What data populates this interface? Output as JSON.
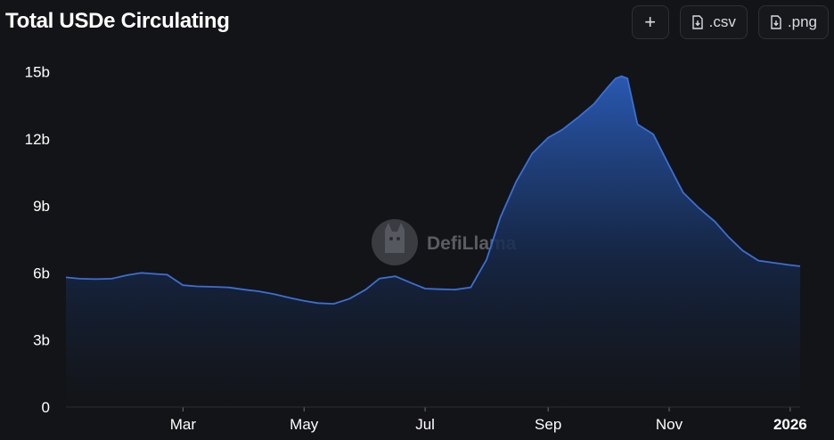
{
  "header": {
    "title": "Total USDe Circulating",
    "buttons": {
      "add_label": "+",
      "csv_label": ".csv",
      "png_label": ".png"
    },
    "icons": {
      "add": "plus-icon",
      "csv": "download-file-icon",
      "png": "download-file-icon"
    }
  },
  "watermark": {
    "text": "DefiLlama",
    "icon": "llama-logo-icon"
  },
  "chart_data": {
    "type": "area",
    "title": "Total USDe Circulating",
    "xlabel": "",
    "ylabel": "",
    "units": "b",
    "color": "#3b6fd6",
    "grid": false,
    "legend": "none",
    "xlim": [
      "2025-01-01",
      "2026-01-06"
    ],
    "ylim": [
      0,
      15.5
    ],
    "y_ticks": [
      0,
      3,
      6,
      9,
      12,
      15
    ],
    "y_tick_labels": [
      "0",
      "3b",
      "6b",
      "9b",
      "12b",
      "15b"
    ],
    "x_ticks": [
      "2025-03-01",
      "2025-05-01",
      "2025-07-01",
      "2025-09-01",
      "2025-11-01",
      "2026-01-01"
    ],
    "x_tick_labels": [
      "Mar",
      "May",
      "Jul",
      "Sep",
      "Nov",
      "2026"
    ],
    "series": [
      {
        "x": [
          "2025-01-01",
          "2025-01-08",
          "2025-01-16",
          "2025-01-24",
          "2025-02-01",
          "2025-02-08",
          "2025-02-14",
          "2025-02-21",
          "2025-03-01",
          "2025-03-08",
          "2025-03-16",
          "2025-03-24",
          "2025-04-01",
          "2025-04-08",
          "2025-04-16",
          "2025-04-24",
          "2025-05-01",
          "2025-05-08",
          "2025-05-16",
          "2025-05-24",
          "2025-06-01",
          "2025-06-08",
          "2025-06-16",
          "2025-06-24",
          "2025-07-01",
          "2025-07-08",
          "2025-07-16",
          "2025-07-24",
          "2025-08-01",
          "2025-08-08",
          "2025-08-16",
          "2025-08-24",
          "2025-09-01",
          "2025-09-08",
          "2025-09-16",
          "2025-09-24",
          "2025-10-01",
          "2025-10-05",
          "2025-10-08",
          "2025-10-11",
          "2025-10-16",
          "2025-10-24",
          "2025-11-01",
          "2025-11-08",
          "2025-11-16",
          "2025-11-24",
          "2025-12-01",
          "2025-12-08",
          "2025-12-16",
          "2025-12-24",
          "2026-01-01",
          "2026-01-06"
        ],
        "values": [
          5.8,
          5.74,
          5.72,
          5.74,
          5.9,
          6.0,
          5.96,
          5.92,
          5.45,
          5.4,
          5.38,
          5.35,
          5.25,
          5.18,
          5.05,
          4.88,
          4.75,
          4.65,
          4.62,
          4.85,
          5.25,
          5.75,
          5.85,
          5.55,
          5.3,
          5.27,
          5.25,
          5.35,
          6.6,
          8.5,
          10.1,
          11.35,
          12.05,
          12.4,
          12.95,
          13.55,
          14.3,
          14.7,
          14.8,
          14.7,
          12.65,
          12.2,
          10.8,
          9.6,
          8.9,
          8.3,
          7.6,
          7.0,
          6.55,
          6.45,
          6.35,
          6.3
        ]
      }
    ]
  }
}
